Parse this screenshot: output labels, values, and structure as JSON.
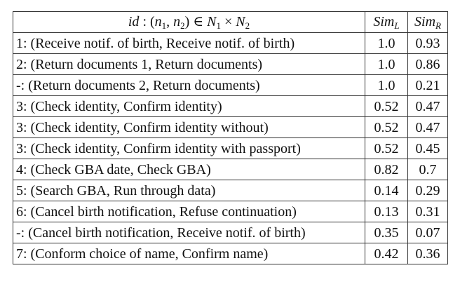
{
  "header": {
    "pair_prefix": "id",
    "pair_colon": " : ",
    "pair_open": "(",
    "n": "n",
    "sub1": "1",
    "comma": ", ",
    "sub2": "2",
    "pair_close": ")",
    "member": " ∈ ",
    "N": "N",
    "times": " × ",
    "sim": "Sim",
    "sub_l": "L",
    "sub_r": "R"
  },
  "rows": [
    {
      "pair": "1: (Receive notif. of birth, Receive notif. of birth)",
      "sim_l": "1.0",
      "sim_r": "0.93"
    },
    {
      "pair": "2: (Return documents 1, Return documents)",
      "sim_l": "1.0",
      "sim_r": "0.86"
    },
    {
      "pair": "-: (Return documents 2, Return documents)",
      "sim_l": "1.0",
      "sim_r": "0.21"
    },
    {
      "pair": "3: (Check identity, Confirm identity)",
      "sim_l": "0.52",
      "sim_r": "0.47"
    },
    {
      "pair": "3: (Check identity, Confirm identity without)",
      "sim_l": "0.52",
      "sim_r": "0.47"
    },
    {
      "pair": "3: (Check identity, Confirm identity with passport)",
      "sim_l": "0.52",
      "sim_r": "0.45"
    },
    {
      "pair": "4: (Check GBA date, Check GBA)",
      "sim_l": "0.82",
      "sim_r": "0.7"
    },
    {
      "pair": "5: (Search GBA, Run through data)",
      "sim_l": "0.14",
      "sim_r": "0.29"
    },
    {
      "pair": "6: (Cancel birth notification, Refuse continuation)",
      "sim_l": "0.13",
      "sim_r": "0.31"
    },
    {
      "pair": "-: (Cancel birth notification, Receive notif. of birth)",
      "sim_l": "0.35",
      "sim_r": "0.07"
    },
    {
      "pair": "7: (Conform choice of name, Confirm name)",
      "sim_l": "0.42",
      "sim_r": "0.36"
    }
  ]
}
